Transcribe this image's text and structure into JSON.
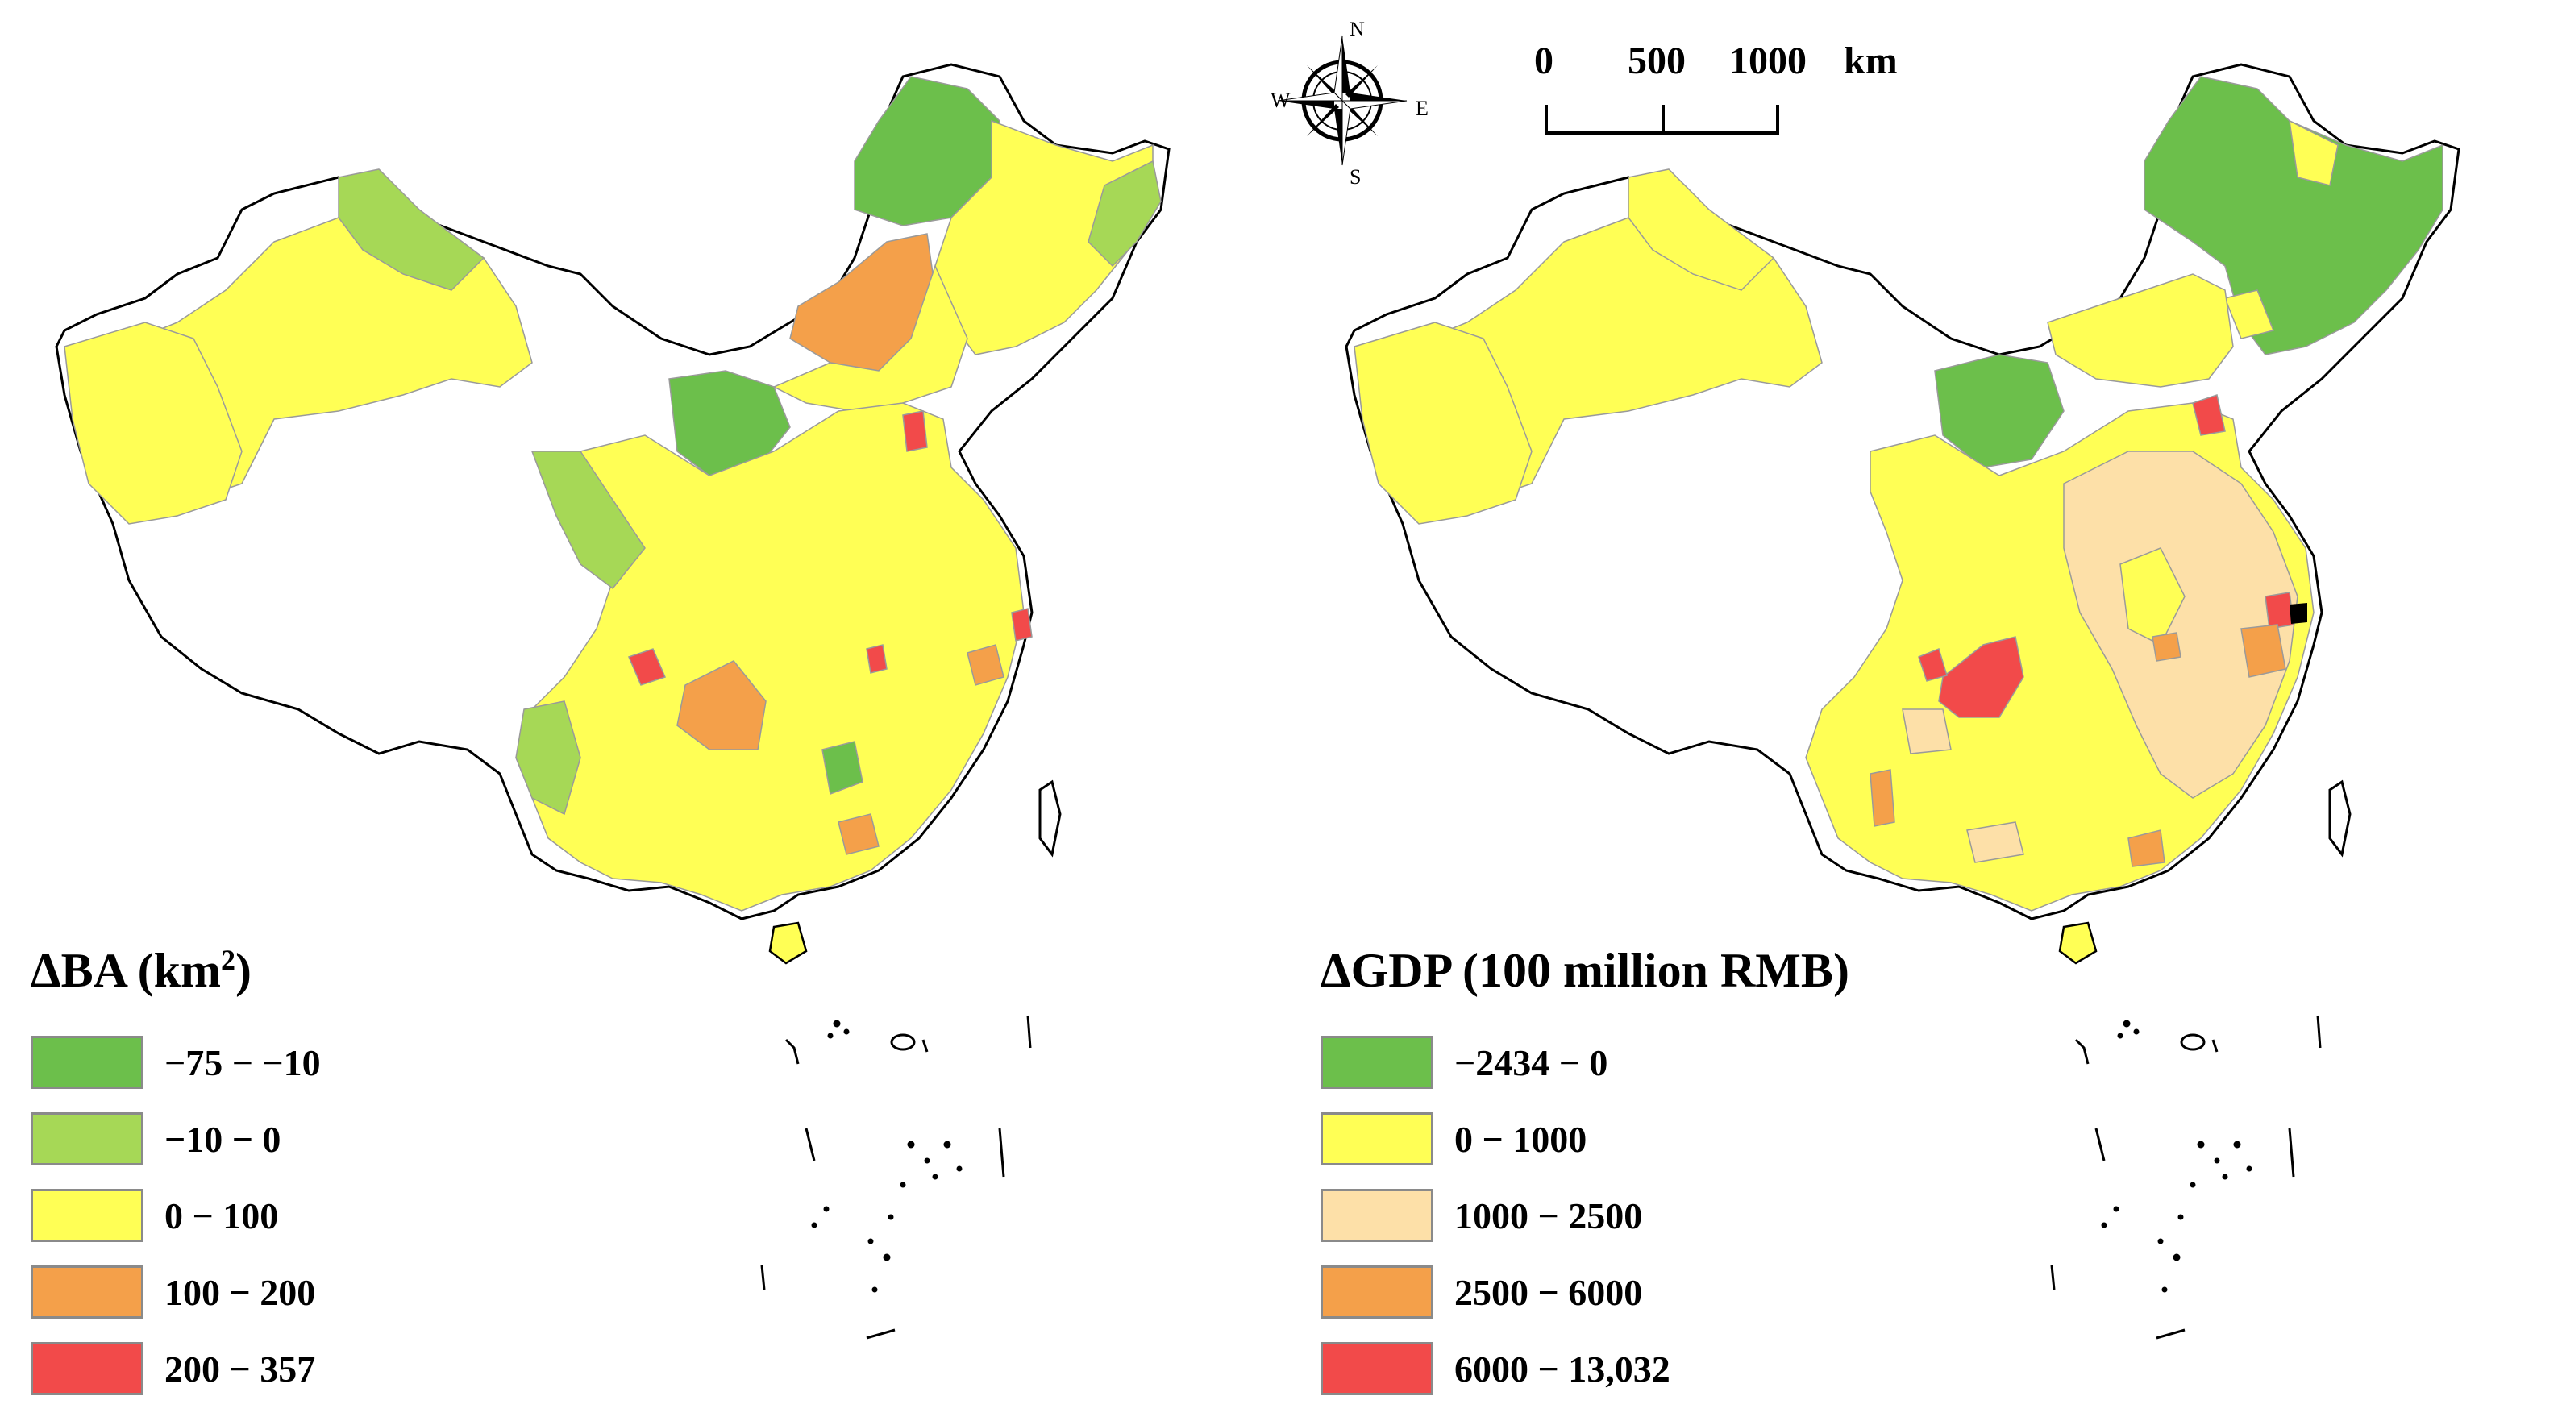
{
  "maps": {
    "left": {
      "legend": {
        "title_prefix": "ΔBA (km",
        "title_sup": "2",
        "title_suffix": ")",
        "classes": [
          {
            "label": "−75 − −10",
            "color": "#6cbf4b"
          },
          {
            "label": "−10 − 0",
            "color": "#a6d856"
          },
          {
            "label": "0 − 100",
            "color": "#ffff55"
          },
          {
            "label": "100 − 200",
            "color": "#f4a04a"
          },
          {
            "label": "200 − 357",
            "color": "#f24a4a"
          }
        ]
      }
    },
    "right": {
      "legend": {
        "title": "ΔGDP (100 million RMB)",
        "classes": [
          {
            "label": "−2434 − 0",
            "color": "#6cbf4b"
          },
          {
            "label": "0 − 1000",
            "color": "#ffff55"
          },
          {
            "label": "1000 − 2500",
            "color": "#fde0a8"
          },
          {
            "label": "2500 − 6000",
            "color": "#f4a04a"
          },
          {
            "label": "6000 − 13,032",
            "color": "#f24a4a"
          }
        ]
      }
    }
  },
  "scale_bar": {
    "ticks": [
      "0",
      "500",
      "1000"
    ],
    "unit": "km"
  },
  "north_arrow": {
    "n": "N",
    "s": "S",
    "e": "E",
    "w": "W"
  }
}
